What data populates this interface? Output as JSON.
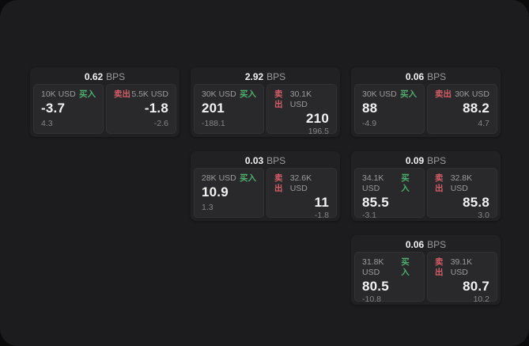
{
  "labels": {
    "bps_unit": "BPS",
    "buy": "买入",
    "sell": "卖出"
  },
  "colors": {
    "page_bg": "#0b0b0b",
    "surface": "#1c1c1e",
    "card_bg": "#212123",
    "panel_bg": "#29292b",
    "buy": "#4fae6d",
    "sell": "#d45d67"
  },
  "cards": [
    {
      "bps": "0.62",
      "buy": {
        "amount": "10K USD",
        "price": "-3.7",
        "delta": "4.3"
      },
      "sell": {
        "amount": "5.5K USD",
        "price": "-1.8",
        "delta": "-2.6"
      }
    },
    {
      "bps": "2.92",
      "buy": {
        "amount": "30K USD",
        "price": "201",
        "delta": "-188.1"
      },
      "sell": {
        "amount": "30.1K USD",
        "price": "210",
        "delta": "196.5"
      }
    },
    {
      "bps": "0.06",
      "buy": {
        "amount": "30K USD",
        "price": "88",
        "delta": "-4.9"
      },
      "sell": {
        "amount": "30K USD",
        "price": "88.2",
        "delta": "4.7"
      }
    },
    {
      "bps": "0.03",
      "buy": {
        "amount": "28K USD",
        "price": "10.9",
        "delta": "1.3"
      },
      "sell": {
        "amount": "32.6K USD",
        "price": "11",
        "delta": "-1.8"
      }
    },
    {
      "bps": "0.09",
      "buy": {
        "amount": "34.1K USD",
        "price": "85.5",
        "delta": "-3.1"
      },
      "sell": {
        "amount": "32.8K USD",
        "price": "85.8",
        "delta": "3.0"
      }
    },
    {
      "bps": "0.06",
      "buy": {
        "amount": "31.8K USD",
        "price": "80.5",
        "delta": "-10.8"
      },
      "sell": {
        "amount": "39.1K USD",
        "price": "80.7",
        "delta": "10.2"
      }
    }
  ]
}
